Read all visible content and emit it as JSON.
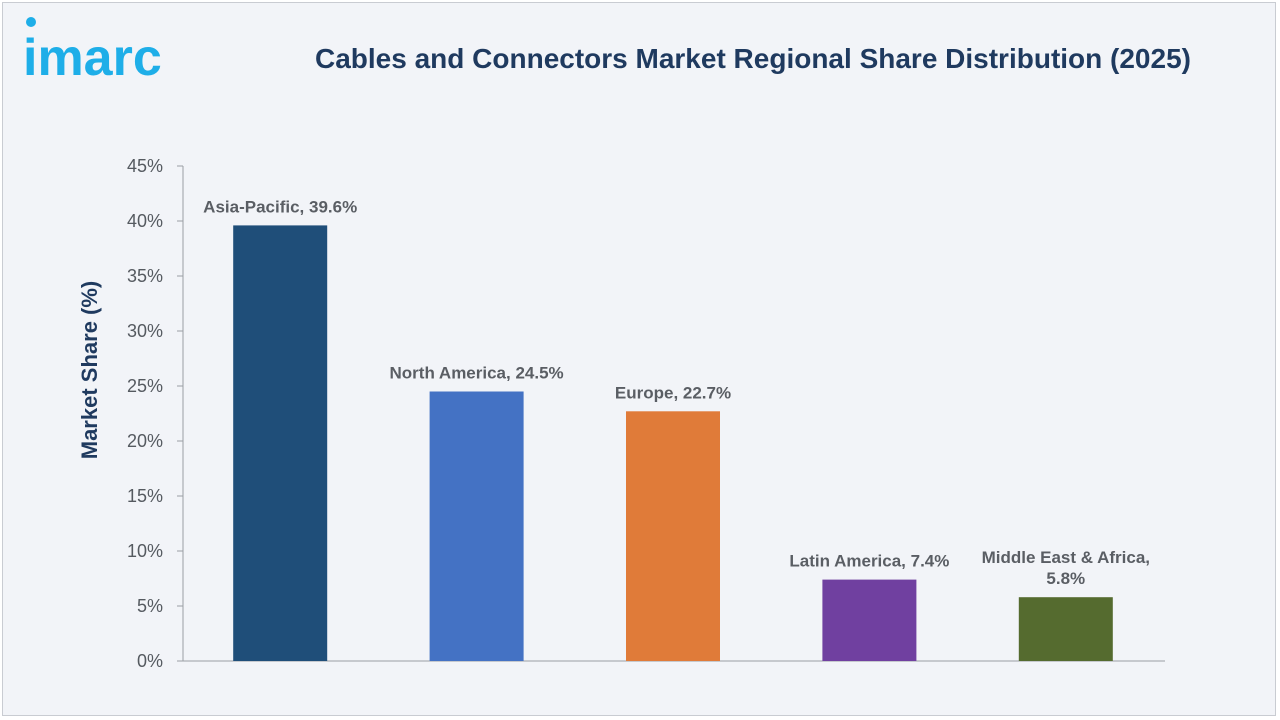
{
  "brand": {
    "logo_text": "imarc",
    "logo_color": "#1eaee8"
  },
  "chart_data": {
    "type": "bar",
    "title": "Cables and Connectors Market Regional Share Distribution (2025)",
    "xlabel": "",
    "ylabel": "Market Share (%)",
    "ylim": [
      0,
      45
    ],
    "yticks": [
      0,
      5,
      10,
      15,
      20,
      25,
      30,
      35,
      40,
      45
    ],
    "ytick_labels": [
      "0%",
      "5%",
      "10%",
      "15%",
      "20%",
      "25%",
      "30%",
      "35%",
      "40%",
      "45%"
    ],
    "grid": false,
    "legend": "none",
    "categories": [
      "Asia-Pacific",
      "North America",
      "Europe",
      "Latin America",
      "Middle East & Africa"
    ],
    "values": [
      39.6,
      24.5,
      22.7,
      7.4,
      5.8
    ],
    "data_labels": [
      [
        "Asia-Pacific, 39.6%"
      ],
      [
        "North America, 24.5%"
      ],
      [
        "Europe, 22.7%"
      ],
      [
        "Latin America, 7.4%"
      ],
      [
        "Middle East & Africa,",
        "5.8%"
      ]
    ],
    "colors": [
      "#1f4e79",
      "#4472c4",
      "#e07b39",
      "#7040a0",
      "#556b2f"
    ]
  }
}
